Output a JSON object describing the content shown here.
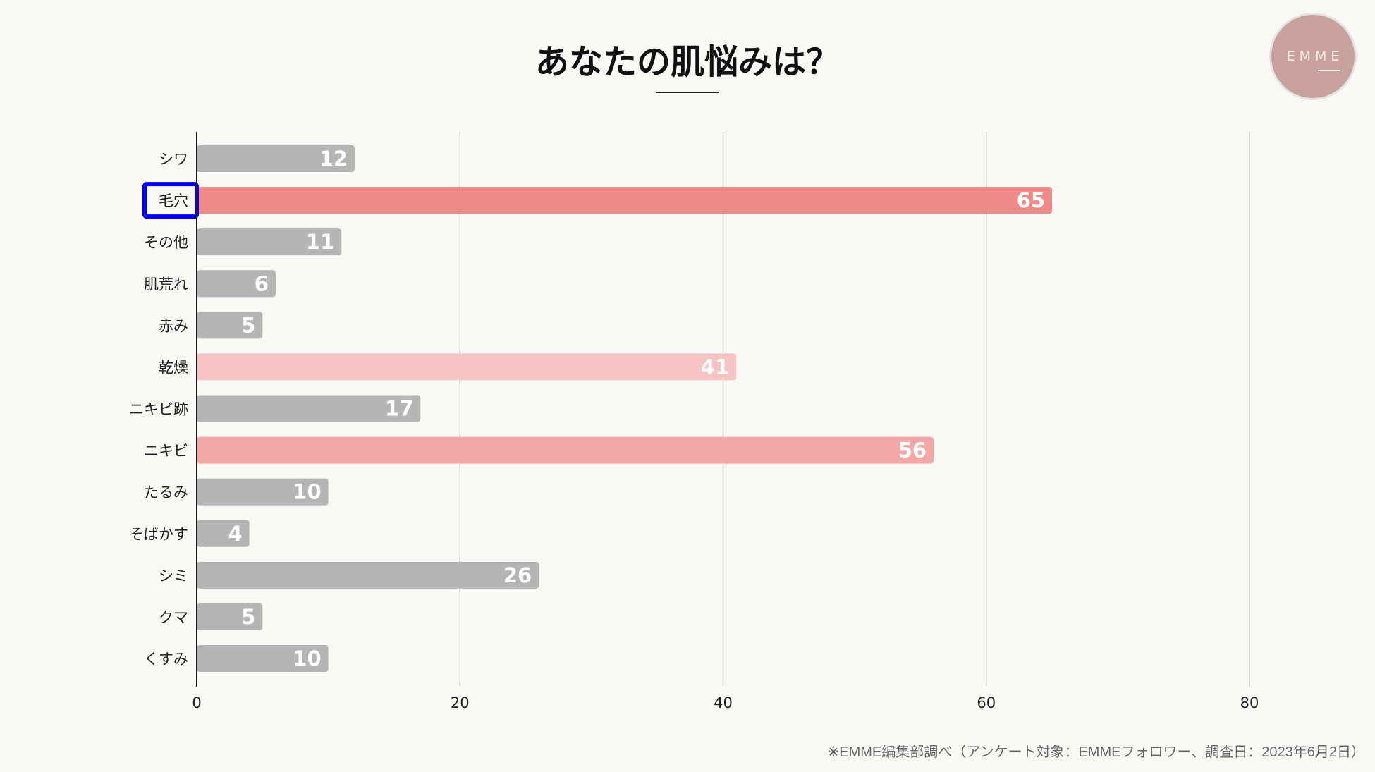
{
  "chart_data": {
    "type": "bar",
    "orientation": "horizontal",
    "title": "あなたの肌悩みは？",
    "categories": [
      "シワ",
      "毛穴",
      "その他",
      "肌荒れ",
      "赤み",
      "乾燥",
      "ニキビ跡",
      "ニキビ",
      "たるみ",
      "そばかす",
      "シミ",
      "クマ",
      "くすみ"
    ],
    "values": [
      12,
      65,
      11,
      6,
      5,
      41,
      17,
      56,
      10,
      4,
      26,
      5,
      10
    ],
    "colors": [
      "#b5b5b5",
      "#ef8a88",
      "#b5b5b5",
      "#b5b5b5",
      "#b5b5b5",
      "#f6c3c3",
      "#b5b5b5",
      "#f4a7a7",
      "#b5b5b5",
      "#b5b5b5",
      "#b5b5b5",
      "#b5b5b5",
      "#b5b5b5"
    ],
    "xlim": [
      0,
      80
    ],
    "xticks": [
      0,
      20,
      40,
      60,
      80
    ],
    "grid": "vertical",
    "data_labels": true,
    "highlighted_category": "毛穴",
    "highlight_color": "#0000ee"
  },
  "logo": {
    "text": "EMME"
  },
  "footnote": "※EMME編集部調べ（アンケート対象：EMMEフォロワー、調査日：2023年6月2日）"
}
